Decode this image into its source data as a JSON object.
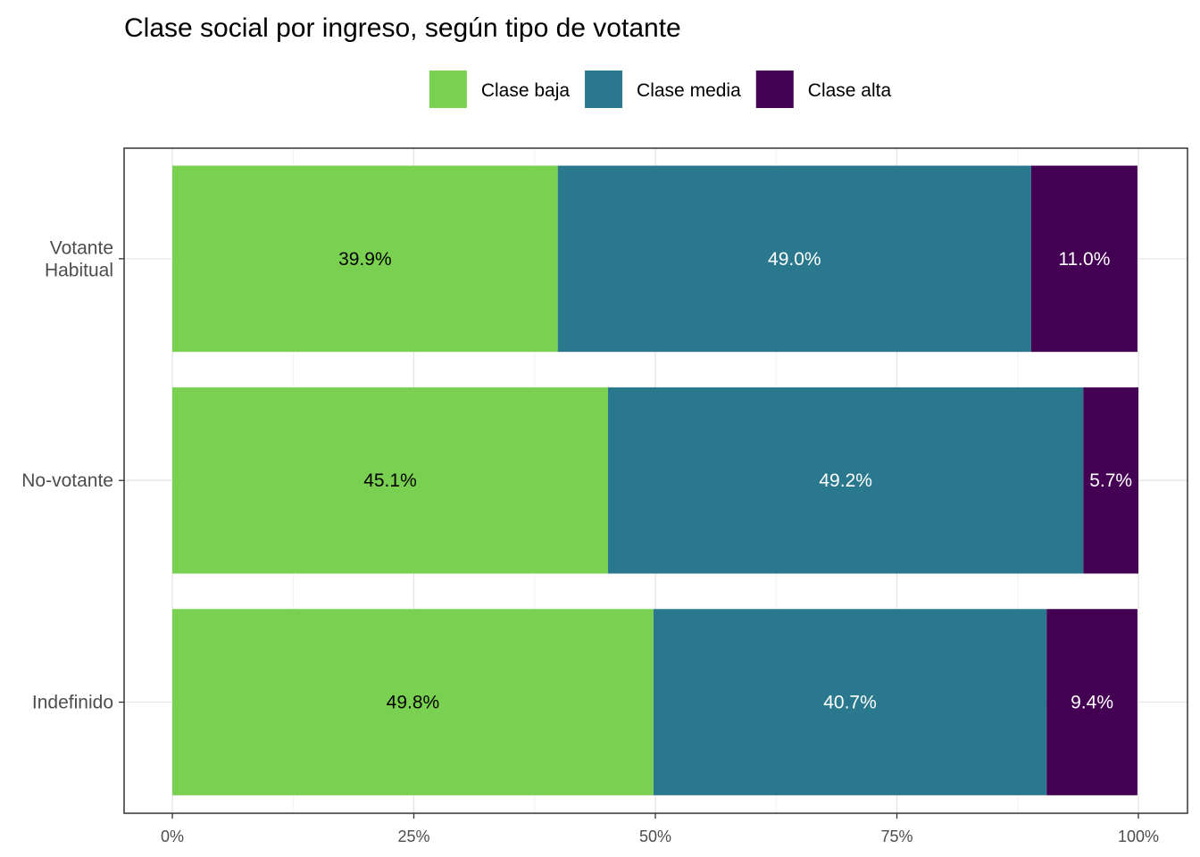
{
  "chart_data": {
    "type": "bar",
    "orientation": "horizontal",
    "stacked": true,
    "title": "Clase social por ingreso, según tipo de votante",
    "xlabel": "",
    "ylabel": "",
    "categories": [
      [
        "Votante",
        "Habitual"
      ],
      [
        "No-votante"
      ],
      [
        "Indefinido"
      ]
    ],
    "series": [
      {
        "name": "Clase baja",
        "color": "#7ad151",
        "label_color": "#000000",
        "values": [
          39.9,
          45.1,
          49.8
        ],
        "labels": [
          "39.9%",
          "45.1%",
          "49.8%"
        ]
      },
      {
        "name": "Clase media",
        "color": "#2a788e",
        "label_color": "#ffffff",
        "values": [
          49.0,
          49.2,
          40.7
        ],
        "labels": [
          "49.0%",
          "49.2%",
          "40.7%"
        ]
      },
      {
        "name": "Clase alta",
        "color": "#440154",
        "label_color": "#ffffff",
        "values": [
          11.0,
          5.7,
          9.4
        ],
        "labels": [
          "11.0%",
          "5.7%",
          "9.4%"
        ]
      }
    ],
    "xlim": [
      0,
      100
    ],
    "x_ticks": [
      0,
      25,
      50,
      75,
      100
    ],
    "x_tick_labels": [
      "0%",
      "25%",
      "50%",
      "75%",
      "100%"
    ],
    "grid": true,
    "legend_position": "top"
  }
}
